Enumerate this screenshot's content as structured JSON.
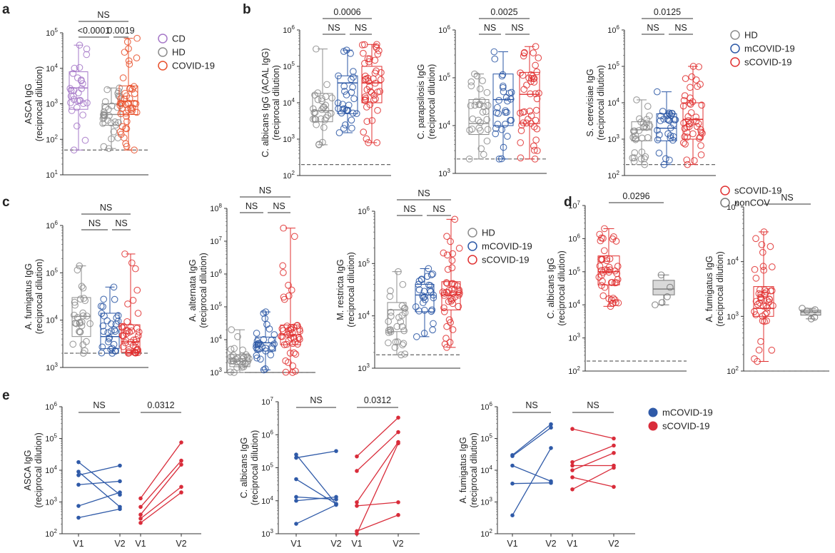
{
  "colors": {
    "CD": "#a678c8",
    "HD": "#8c8c8c",
    "COVID-19": "#e8502b",
    "mCOVID-19": "#2b57a5",
    "sCOVID-19": "#e03030",
    "nonCOV": "#777777",
    "e_m": "#2f5aa8",
    "e_s": "#d92c3a"
  },
  "panel_labels": {
    "a": "a",
    "b": "b",
    "c": "c",
    "d": "d",
    "e": "e"
  },
  "legends": {
    "a": [
      "CD",
      "HD",
      "COVID-19"
    ],
    "b": [
      "HD",
      "mCOVID-19",
      "sCOVID-19"
    ],
    "c": [
      "HD",
      "mCOVID-19",
      "sCOVID-19"
    ],
    "d": [
      "sCOVID-19",
      "nonCOV"
    ],
    "e": [
      "mCOVID-19",
      "sCOVID-19"
    ]
  },
  "chart_data": [
    {
      "id": "a1",
      "type": "box",
      "panel": "a",
      "ylabel": [
        "ASCA IgG",
        "(reciprocal dilution)"
      ],
      "yscale": "log",
      "ylim_exp": [
        1,
        5
      ],
      "cutoff": 50,
      "groups": [
        {
          "name": "CD",
          "stats": [
            50,
            700,
            2800,
            8000,
            45000
          ]
        },
        {
          "name": "HD",
          "stats": [
            55,
            250,
            500,
            1000,
            2800
          ]
        },
        {
          "name": "COVID-19",
          "stats": [
            50,
            500,
            1200,
            3200,
            70000
          ]
        }
      ],
      "brackets": [
        {
          "from": 0,
          "to": 1,
          "label": "<0.0001",
          "level": 0
        },
        {
          "from": 1,
          "to": 2,
          "label": "0.0019",
          "level": 0
        },
        {
          "from": 0,
          "to": 2,
          "label": "NS",
          "level": 1
        }
      ]
    },
    {
      "id": "b1",
      "type": "box",
      "panel": "b",
      "ylabel": [
        "C. albicans IgG (ACAL IgG)",
        "(reciprocal dilution)"
      ],
      "yscale": "log",
      "ylim_exp": [
        2,
        6
      ],
      "cutoff": 200,
      "groups": [
        {
          "name": "HD",
          "stats": [
            700,
            3000,
            6000,
            18000,
            300000
          ]
        },
        {
          "name": "mCOVID-19",
          "stats": [
            1500,
            5000,
            35000,
            55000,
            280000
          ]
        },
        {
          "name": "sCOVID-19",
          "stats": [
            800,
            10000,
            35000,
            100000,
            400000
          ]
        }
      ],
      "brackets": [
        {
          "from": 0,
          "to": 1,
          "label": "NS",
          "level": 0
        },
        {
          "from": 1,
          "to": 2,
          "label": "NS",
          "level": 0
        },
        {
          "from": 0,
          "to": 2,
          "label": "0.0006",
          "level": 1
        }
      ]
    },
    {
      "id": "b2",
      "type": "box",
      "panel": "b",
      "ylabel": [
        "C. parapsilosis IgG",
        "(reciprocal dilution)"
      ],
      "yscale": "log",
      "ylim_exp": [
        3,
        6
      ],
      "cutoff": 2000,
      "groups": [
        {
          "name": "HD",
          "stats": [
            2000,
            6500,
            11000,
            35000,
            120000
          ]
        },
        {
          "name": "mCOVID-19",
          "stats": [
            2000,
            10000,
            35000,
            120000,
            350000
          ]
        },
        {
          "name": "sCOVID-19",
          "stats": [
            2000,
            11000,
            45000,
            130000,
            450000
          ]
        }
      ],
      "brackets": [
        {
          "from": 0,
          "to": 1,
          "label": "NS",
          "level": 0
        },
        {
          "from": 1,
          "to": 2,
          "label": "NS",
          "level": 0
        },
        {
          "from": 0,
          "to": 2,
          "label": "0.0025",
          "level": 1
        }
      ]
    },
    {
      "id": "b3",
      "type": "box",
      "panel": "b",
      "ylabel": [
        "S. cerevisiae IgG",
        "(reciprocal dilution)"
      ],
      "yscale": "log",
      "ylim_exp": [
        2,
        6
      ],
      "cutoff": 200,
      "groups": [
        {
          "name": "HD",
          "stats": [
            200,
            900,
            1800,
            3000,
            12000
          ]
        },
        {
          "name": "mCOVID-19",
          "stats": [
            200,
            900,
            2000,
            5000,
            20000
          ]
        },
        {
          "name": "sCOVID-19",
          "stats": [
            200,
            1000,
            3500,
            10000,
            100000
          ]
        }
      ],
      "brackets": [
        {
          "from": 0,
          "to": 1,
          "label": "NS",
          "level": 0
        },
        {
          "from": 1,
          "to": 2,
          "label": "NS",
          "level": 0
        },
        {
          "from": 0,
          "to": 2,
          "label": "0.0125",
          "level": 1
        }
      ]
    },
    {
      "id": "c1",
      "type": "box",
      "panel": "c",
      "ylabel": [
        "A. fumigatus IgG",
        "(reciprocal dilution)"
      ],
      "yscale": "log",
      "ylim_exp": [
        3,
        6
      ],
      "cutoff": 2000,
      "groups": [
        {
          "name": "HD",
          "stats": [
            2000,
            4500,
            12000,
            30000,
            140000
          ]
        },
        {
          "name": "mCOVID-19",
          "stats": [
            2000,
            2500,
            4500,
            14000,
            50000
          ]
        },
        {
          "name": "sCOVID-19",
          "stats": [
            2000,
            2100,
            3500,
            8000,
            250000
          ]
        }
      ],
      "brackets": [
        {
          "from": 0,
          "to": 1,
          "label": "NS",
          "level": 0
        },
        {
          "from": 1,
          "to": 2,
          "label": "NS",
          "level": 0
        },
        {
          "from": 0,
          "to": 2,
          "label": "NS",
          "level": 1
        }
      ]
    },
    {
      "id": "c2",
      "type": "box",
      "panel": "c",
      "ylabel": [
        "A. alternata IgG",
        "(reciprocal dilution)"
      ],
      "yscale": "log",
      "ylim_exp": [
        3,
        8
      ],
      "cutoff": 1000,
      "groups": [
        {
          "name": "HD",
          "stats": [
            1000,
            1500,
            2200,
            3500,
            20000
          ]
        },
        {
          "name": "mCOVID-19",
          "stats": [
            1200,
            4500,
            8000,
            12000,
            70000
          ]
        },
        {
          "name": "sCOVID-19",
          "stats": [
            1000,
            7000,
            14000,
            28000,
            25000000
          ]
        }
      ],
      "brackets": [
        {
          "from": 0,
          "to": 1,
          "label": "NS",
          "level": 0
        },
        {
          "from": 1,
          "to": 2,
          "label": "NS",
          "level": 0
        },
        {
          "from": 0,
          "to": 2,
          "label": "NS",
          "level": 1
        }
      ]
    },
    {
      "id": "c3",
      "type": "box",
      "panel": "c",
      "ylabel": [
        "M. restricta IgG",
        "(reciprocal dilution)"
      ],
      "yscale": "log",
      "ylim_exp": [
        3,
        6
      ],
      "cutoff": 1800,
      "groups": [
        {
          "name": "HD",
          "stats": [
            1800,
            5000,
            13000,
            18000,
            70000
          ]
        },
        {
          "name": "mCOVID-19",
          "stats": [
            4000,
            12000,
            25000,
            40000,
            80000
          ]
        },
        {
          "name": "sCOVID-19",
          "stats": [
            2500,
            13000,
            25000,
            45000,
            700000
          ]
        }
      ],
      "brackets": [
        {
          "from": 0,
          "to": 1,
          "label": "NS",
          "level": 0
        },
        {
          "from": 1,
          "to": 2,
          "label": "NS",
          "level": 0
        },
        {
          "from": 0,
          "to": 2,
          "label": "NS",
          "level": 1
        }
      ]
    },
    {
      "id": "d1",
      "type": "box",
      "panel": "d",
      "ylabel": [
        "C. albicans IgG",
        "(reciprocal dilution)"
      ],
      "yscale": "log",
      "ylim_exp": [
        2,
        7
      ],
      "cutoff": 200,
      "groups": [
        {
          "name": "sCOVID-19",
          "stats": [
            9000,
            40000,
            100000,
            300000,
            2000000
          ]
        },
        {
          "name": "nonCOV",
          "stats": [
            10000,
            20000,
            30000,
            55000,
            80000
          ]
        }
      ],
      "brackets": [
        {
          "from": 0,
          "to": 1,
          "label": "0.0296",
          "level": 0
        }
      ]
    },
    {
      "id": "d2",
      "type": "box",
      "panel": "d",
      "ylabel": [
        "A. fumigatus IgG",
        "(reciprocal dilution)"
      ],
      "yscale": "log",
      "ylim_exp": [
        2,
        5
      ],
      "cutoff": 100,
      "groups": [
        {
          "name": "sCOVID-19",
          "stats": [
            150,
            1000,
            1400,
            3500,
            35000
          ]
        },
        {
          "name": "nonCOV",
          "stats": [
            900,
            1050,
            1200,
            1300,
            1400
          ]
        }
      ],
      "brackets": [
        {
          "from": 0,
          "to": 1,
          "label": "NS",
          "level": 0
        }
      ]
    },
    {
      "id": "e1",
      "type": "paired-line",
      "panel": "e",
      "ylabel": [
        "ASCA IgG",
        "(reciprocal dilution)"
      ],
      "yscale": "log",
      "ylim_exp": [
        2,
        6
      ],
      "x_labels": [
        "V1",
        "V2",
        "V1",
        "V2"
      ],
      "series": [
        {
          "name": "mCOVID-19",
          "pairs": [
            [
              18000,
              1700
            ],
            [
              9000,
              700
            ],
            [
              7000,
              14000
            ],
            [
              3500,
              4500
            ],
            [
              750,
              2000
            ],
            [
              320,
              600
            ]
          ]
        },
        {
          "name": "sCOVID-19",
          "pairs": [
            [
              1300,
              75000
            ],
            [
              700,
              20000
            ],
            [
              400,
              15000
            ],
            [
              300,
              3000
            ],
            [
              220,
              2000
            ]
          ]
        }
      ],
      "brackets": [
        {
          "group": 0,
          "label": "NS"
        },
        {
          "group": 1,
          "label": "0.0312"
        }
      ]
    },
    {
      "id": "e2",
      "type": "paired-line",
      "panel": "e",
      "ylabel": [
        "C. albicans IgG",
        "(reciprocal dilution)"
      ],
      "yscale": "log",
      "ylim_exp": [
        3,
        7
      ],
      "x_labels": [
        "V1",
        "V2",
        "V1",
        "V2"
      ],
      "series": [
        {
          "name": "mCOVID-19",
          "pairs": [
            [
              250000,
              8000
            ],
            [
              200000,
              320000
            ],
            [
              45000,
              8000
            ],
            [
              13000,
              11000
            ],
            [
              10000,
              13000
            ],
            [
              2000,
              7500
            ]
          ]
        },
        {
          "name": "sCOVID-19",
          "pairs": [
            [
              220000,
              3300000
            ],
            [
              80000,
              1200000
            ],
            [
              9000,
              600000
            ],
            [
              7000,
              9000
            ],
            [
              1200,
              3700
            ],
            [
              1000,
              550000
            ]
          ]
        }
      ],
      "brackets": [
        {
          "group": 0,
          "label": "NS"
        },
        {
          "group": 1,
          "label": "0.0312"
        }
      ]
    },
    {
      "id": "e3",
      "type": "paired-line",
      "panel": "e",
      "ylabel": [
        "A. fumigatus IgG",
        "(reciprocal dilution)"
      ],
      "yscale": "log",
      "ylim_exp": [
        2,
        6
      ],
      "x_labels": [
        "V1",
        "V2",
        "V1",
        "V2"
      ],
      "series": [
        {
          "name": "mCOVID-19",
          "pairs": [
            [
              30000,
              280000
            ],
            [
              28000,
              220000
            ],
            [
              14000,
              4500
            ],
            [
              3800,
              4000
            ],
            [
              380,
              50000
            ]
          ]
        },
        {
          "name": "sCOVID-19",
          "pairs": [
            [
              200000,
              100000
            ],
            [
              18000,
              60000
            ],
            [
              14000,
              14000
            ],
            [
              10000,
              35000
            ],
            [
              6000,
              3000
            ],
            [
              2500,
              12000
            ]
          ]
        }
      ],
      "brackets": [
        {
          "group": 0,
          "label": "NS"
        },
        {
          "group": 1,
          "label": "NS"
        }
      ]
    }
  ]
}
